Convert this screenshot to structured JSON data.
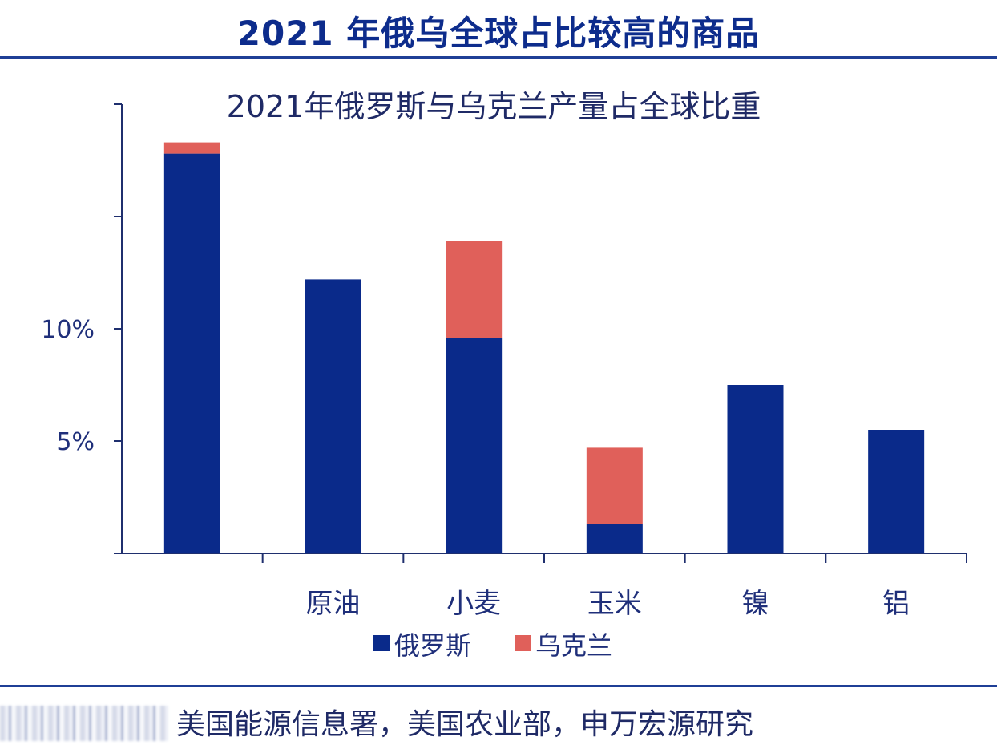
{
  "header": {
    "title": "2021 年俄乌全球占比较高的商品"
  },
  "chart_data": {
    "type": "bar",
    "stacked": true,
    "title": "2021年俄罗斯与乌克兰产量占全球比重",
    "categories": [
      "",
      "原油",
      "小麦",
      "玉米",
      "镍",
      "铝"
    ],
    "series": [
      {
        "name": "俄罗斯",
        "color": "#0a2a8a",
        "values": [
          17.8,
          12.2,
          9.6,
          1.3,
          7.5,
          5.5
        ]
      },
      {
        "name": "乌克兰",
        "color": "#e0605a",
        "values": [
          0.5,
          0,
          4.3,
          3.4,
          0,
          0
        ]
      }
    ],
    "ylim": [
      0,
      20
    ],
    "yticks": [
      0,
      5,
      10,
      15,
      20
    ],
    "ytick_labels": [
      "",
      "5%",
      "10%",
      "",
      ""
    ],
    "xlabel": "",
    "ylabel": "",
    "grid": false,
    "legend_position": "bottom"
  },
  "source": {
    "text": "美国能源信息署，美国农业部，申万宏源研究"
  }
}
